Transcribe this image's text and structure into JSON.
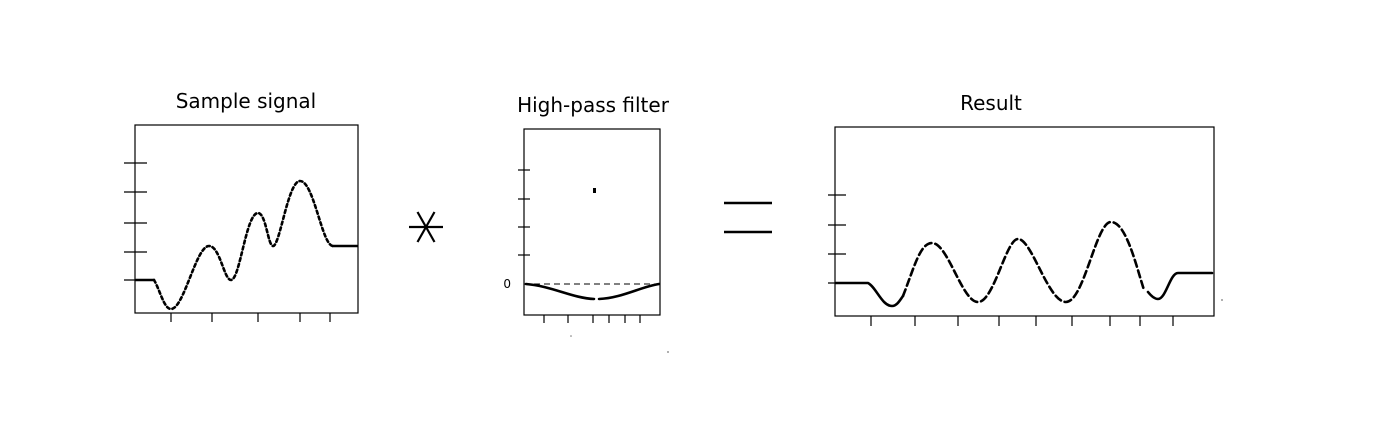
{
  "panels": [
    {
      "id": "sample",
      "title": "Sample signal"
    },
    {
      "id": "filter",
      "title": "High-pass filter",
      "zero_label": "0"
    },
    {
      "id": "result",
      "title": "Result"
    }
  ],
  "operators": {
    "convolution": "convolution-asterisk-icon",
    "equals": "equals-sign-icon"
  },
  "colors": {
    "line": "#000000",
    "background": "#ffffff"
  }
}
